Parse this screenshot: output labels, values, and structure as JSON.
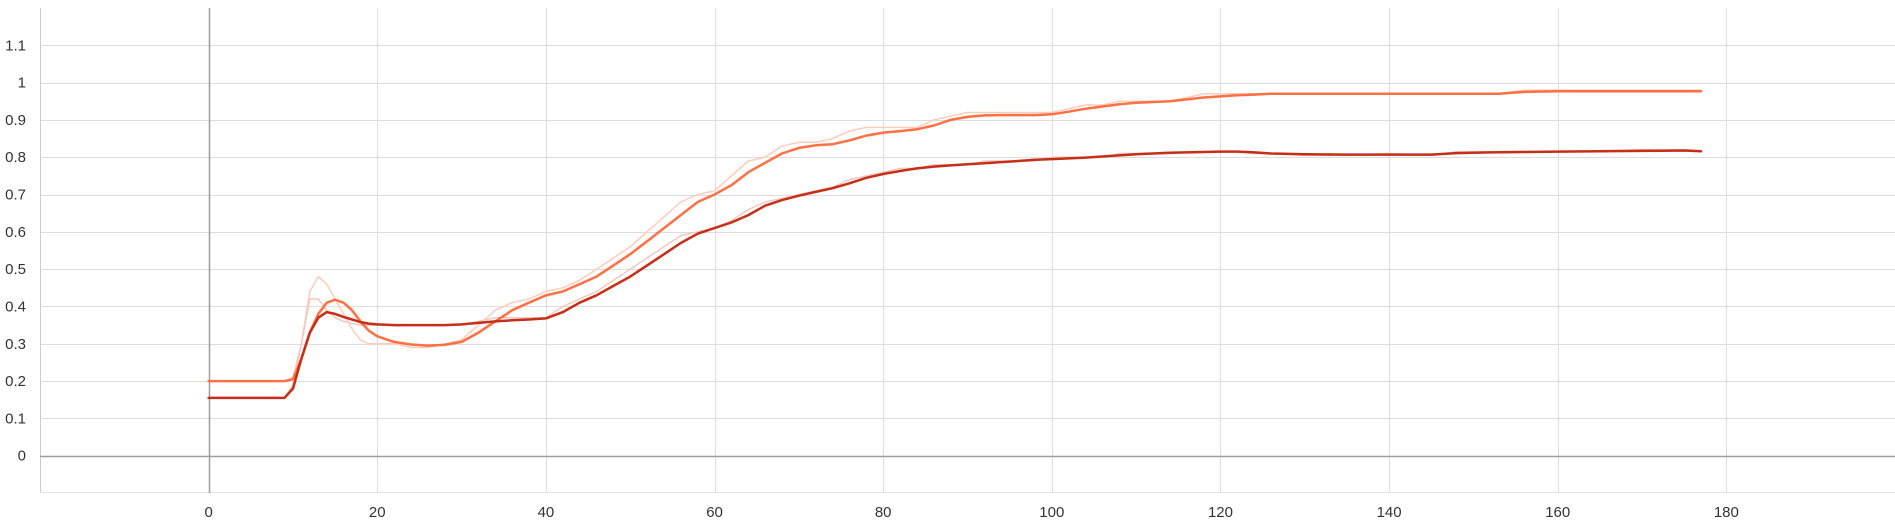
{
  "chart_data": {
    "type": "line",
    "title": "",
    "xlabel": "",
    "ylabel": "",
    "xlim": [
      -20,
      200
    ],
    "ylim": [
      -0.1,
      1.2
    ],
    "x_ticks": [
      0,
      20,
      40,
      60,
      80,
      100,
      120,
      140,
      160,
      180
    ],
    "x_tick_labels": [
      "0",
      "20",
      "40",
      "60",
      "80",
      "100",
      "120",
      "140",
      "160",
      "180"
    ],
    "y_ticks": [
      0,
      0.1,
      0.2,
      0.3,
      0.4,
      0.5,
      0.6,
      0.7,
      0.8,
      0.9,
      1,
      1.1
    ],
    "y_tick_labels": [
      "0",
      "0.1",
      "0.2",
      "0.3",
      "0.4",
      "0.5",
      "0.6",
      "0.7",
      "0.8",
      "0.9",
      "1",
      "1.1"
    ],
    "grid": true,
    "legend": "none",
    "series": [
      {
        "color": "#ff7043",
        "raw_color": "#ffccbc",
        "x": [
          0,
          5,
          9,
          10,
          11,
          12,
          13,
          14,
          15,
          16,
          17,
          18,
          19,
          20,
          22,
          24,
          26,
          28,
          30,
          32,
          34,
          36,
          38,
          40,
          42,
          44,
          46,
          48,
          50,
          52,
          54,
          56,
          58,
          60,
          62,
          64,
          66,
          68,
          70,
          72,
          74,
          76,
          78,
          80,
          82,
          84,
          86,
          88,
          90,
          92,
          94,
          96,
          98,
          100,
          102,
          104,
          106,
          108,
          110,
          112,
          114,
          116,
          118,
          120,
          122,
          124,
          126,
          130,
          140,
          150,
          153,
          156,
          160,
          170,
          177
        ],
        "raw": [
          0.2,
          0.2,
          0.2,
          0.21,
          0.3,
          0.44,
          0.48,
          0.46,
          0.42,
          0.38,
          0.34,
          0.31,
          0.3,
          0.3,
          0.3,
          0.29,
          0.29,
          0.3,
          0.31,
          0.35,
          0.39,
          0.41,
          0.42,
          0.44,
          0.45,
          0.47,
          0.5,
          0.53,
          0.56,
          0.6,
          0.64,
          0.68,
          0.7,
          0.71,
          0.75,
          0.79,
          0.8,
          0.83,
          0.84,
          0.84,
          0.85,
          0.87,
          0.88,
          0.88,
          0.88,
          0.88,
          0.9,
          0.91,
          0.92,
          0.92,
          0.92,
          0.92,
          0.92,
          0.92,
          0.93,
          0.94,
          0.94,
          0.95,
          0.95,
          0.95,
          0.95,
          0.96,
          0.97,
          0.97,
          0.97,
          0.97,
          0.97,
          0.97,
          0.97,
          0.97,
          0.97,
          0.98,
          0.98,
          0.98,
          0.98
        ],
        "values": [
          0.2,
          0.2,
          0.2,
          0.205,
          0.26,
          0.33,
          0.38,
          0.41,
          0.418,
          0.41,
          0.39,
          0.36,
          0.335,
          0.32,
          0.305,
          0.298,
          0.295,
          0.297,
          0.305,
          0.33,
          0.36,
          0.39,
          0.41,
          0.43,
          0.44,
          0.46,
          0.48,
          0.51,
          0.54,
          0.575,
          0.61,
          0.645,
          0.68,
          0.7,
          0.725,
          0.76,
          0.785,
          0.81,
          0.825,
          0.832,
          0.835,
          0.845,
          0.858,
          0.866,
          0.87,
          0.875,
          0.885,
          0.9,
          0.908,
          0.912,
          0.913,
          0.913,
          0.913,
          0.915,
          0.922,
          0.93,
          0.936,
          0.942,
          0.946,
          0.948,
          0.95,
          0.955,
          0.96,
          0.963,
          0.966,
          0.968,
          0.97,
          0.97,
          0.97,
          0.97,
          0.97,
          0.975,
          0.977,
          0.977,
          0.977
        ]
      },
      {
        "color": "#c62f17",
        "raw_color": "#f2c8bf",
        "x": [
          0,
          5,
          9,
          10,
          11,
          12,
          13,
          14,
          15,
          16,
          17,
          18,
          19,
          20,
          22,
          24,
          26,
          28,
          30,
          32,
          34,
          36,
          38,
          40,
          42,
          44,
          46,
          48,
          50,
          52,
          54,
          56,
          58,
          60,
          62,
          64,
          66,
          68,
          70,
          72,
          74,
          76,
          78,
          80,
          82,
          84,
          86,
          88,
          90,
          92,
          94,
          96,
          98,
          100,
          102,
          104,
          106,
          108,
          110,
          112,
          114,
          116,
          118,
          120,
          122,
          124,
          126,
          130,
          135,
          140,
          145,
          148,
          152,
          156,
          160,
          170,
          175,
          177
        ],
        "raw": [
          0.155,
          0.155,
          0.155,
          0.19,
          0.3,
          0.42,
          0.42,
          0.39,
          0.37,
          0.36,
          0.355,
          0.35,
          0.35,
          0.35,
          0.35,
          0.35,
          0.35,
          0.35,
          0.35,
          0.36,
          0.37,
          0.37,
          0.37,
          0.37,
          0.4,
          0.42,
          0.44,
          0.47,
          0.5,
          0.53,
          0.56,
          0.59,
          0.6,
          0.61,
          0.63,
          0.66,
          0.68,
          0.69,
          0.7,
          0.71,
          0.72,
          0.74,
          0.75,
          0.76,
          0.77,
          0.77,
          0.78,
          0.78,
          0.78,
          0.79,
          0.79,
          0.79,
          0.79,
          0.8,
          0.8,
          0.8,
          0.8,
          0.81,
          0.81,
          0.81,
          0.81,
          0.815,
          0.815,
          0.815,
          0.815,
          0.81,
          0.81,
          0.805,
          0.805,
          0.81,
          0.805,
          0.815,
          0.815,
          0.815,
          0.815,
          0.82,
          0.82,
          0.815
        ],
        "values": [
          0.155,
          0.155,
          0.155,
          0.18,
          0.26,
          0.33,
          0.37,
          0.385,
          0.38,
          0.372,
          0.365,
          0.358,
          0.354,
          0.352,
          0.35,
          0.35,
          0.35,
          0.35,
          0.352,
          0.356,
          0.36,
          0.363,
          0.365,
          0.368,
          0.385,
          0.41,
          0.43,
          0.455,
          0.48,
          0.51,
          0.54,
          0.57,
          0.595,
          0.61,
          0.625,
          0.645,
          0.67,
          0.685,
          0.697,
          0.707,
          0.717,
          0.73,
          0.745,
          0.755,
          0.763,
          0.77,
          0.775,
          0.778,
          0.781,
          0.784,
          0.787,
          0.79,
          0.793,
          0.795,
          0.797,
          0.799,
          0.802,
          0.805,
          0.808,
          0.81,
          0.812,
          0.813,
          0.814,
          0.815,
          0.815,
          0.813,
          0.81,
          0.808,
          0.807,
          0.807,
          0.807,
          0.811,
          0.813,
          0.814,
          0.815,
          0.817,
          0.818,
          0.816
        ]
      }
    ]
  }
}
